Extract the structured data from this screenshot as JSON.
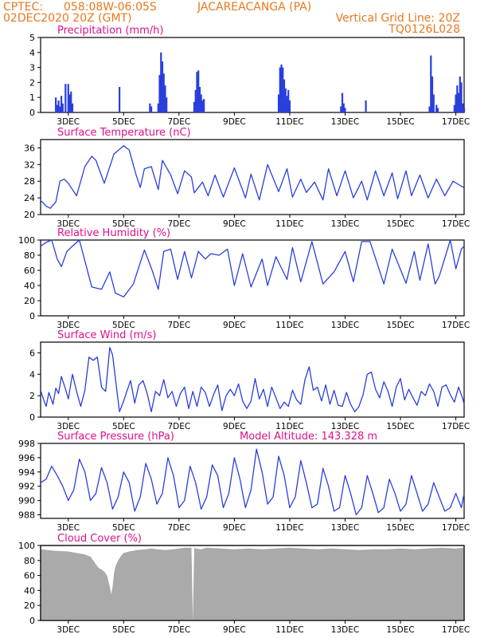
{
  "header": {
    "source": "CPTEC:",
    "coords": "058:08W-06:05S",
    "station": "JACAREACANGA (PA)",
    "run": "02DEC2020 20Z (GMT)",
    "grid_note": "Vertical Grid Line: 20Z",
    "model": "TQ0126L028"
  },
  "colors": {
    "header": "#e8781e",
    "title": "#e0108a",
    "series": "#2a3fdc",
    "cloud": "#aaaaaa"
  },
  "chart_data": [
    {
      "type": "bar",
      "title": "Precipitation (mm/h)",
      "x": [
        2.55,
        2.6,
        2.65,
        2.7,
        2.75,
        2.8,
        2.9,
        3.0,
        3.05,
        3.1,
        3.15,
        4.85,
        5.95,
        6.0,
        6.25,
        6.3,
        6.35,
        6.4,
        6.45,
        6.5,
        6.55,
        7.55,
        7.6,
        7.65,
        7.7,
        7.75,
        7.8,
        7.85,
        7.9,
        10.6,
        10.65,
        10.7,
        10.75,
        10.8,
        10.85,
        10.9,
        10.95,
        11.0,
        12.85,
        12.9,
        12.95,
        13.0,
        13.75,
        16.05,
        16.1,
        16.15,
        16.2,
        16.3,
        16.35,
        16.95,
        17.0,
        17.05,
        17.1,
        17.15,
        17.2,
        17.25,
        17.3
      ],
      "values": [
        1.0,
        0.5,
        0.8,
        0.4,
        1.1,
        0.6,
        1.9,
        1.9,
        1.2,
        1.4,
        0.6,
        1.7,
        0.6,
        0.4,
        0.6,
        2.5,
        4.0,
        3.4,
        2.6,
        1.8,
        1.0,
        0.7,
        1.5,
        2.7,
        2.8,
        1.7,
        1.2,
        0.8,
        0.9,
        1.2,
        3.0,
        3.2,
        3.0,
        2.2,
        1.6,
        1.1,
        1.5,
        0.8,
        0.4,
        1.3,
        0.6,
        0.3,
        0.8,
        0.4,
        3.8,
        2.4,
        1.2,
        0.5,
        0.3,
        0.5,
        1.2,
        1.8,
        1.3,
        2.4,
        2.0,
        0.6,
        0.3
      ],
      "x_ticks": [
        "3DEC",
        "5DEC",
        "7DEC",
        "9DEC",
        "11DEC",
        "13DEC",
        "15DEC",
        "17DEC"
      ],
      "y_ticks": [
        "0",
        "1",
        "2",
        "3",
        "4",
        "5"
      ],
      "ylim": [
        0,
        5
      ]
    },
    {
      "type": "line",
      "title": "Surface Temperature (nC)",
      "x": [
        2.0,
        2.1,
        2.2,
        2.35,
        2.55,
        2.7,
        2.85,
        3.0,
        3.3,
        3.6,
        3.85,
        4.0,
        4.3,
        4.65,
        5.0,
        5.2,
        5.45,
        5.6,
        5.75,
        6.0,
        6.25,
        6.4,
        6.7,
        6.95,
        7.2,
        7.45,
        7.55,
        7.85,
        8.05,
        8.3,
        8.6,
        9.0,
        9.4,
        9.6,
        9.9,
        10.2,
        10.6,
        10.9,
        11.1,
        11.4,
        11.6,
        11.9,
        12.2,
        12.4,
        12.7,
        13.0,
        13.3,
        13.6,
        13.8,
        14.1,
        14.4,
        14.7,
        14.9,
        15.2,
        15.4,
        15.7,
        16.0,
        16.3,
        16.6,
        16.9,
        17.2,
        17.3
      ],
      "values": [
        23.3,
        22.8,
        22.0,
        21.5,
        23.0,
        28.0,
        28.5,
        27.5,
        24.5,
        31.5,
        34.0,
        33.0,
        27.5,
        34.5,
        36.5,
        35.5,
        29.5,
        26.5,
        31.0,
        31.5,
        26.0,
        33.0,
        29.5,
        25.0,
        30.5,
        29.0,
        25.2,
        27.8,
        24.5,
        29.5,
        24.2,
        31.2,
        24.0,
        29.7,
        23.5,
        32.0,
        25.5,
        31.0,
        24.2,
        28.5,
        25.3,
        27.8,
        23.5,
        31.0,
        24.5,
        30.5,
        24.0,
        28.0,
        23.5,
        30.5,
        24.5,
        30.0,
        23.8,
        30.5,
        24.5,
        29.5,
        24.0,
        28.5,
        24.5,
        28.0,
        26.8,
        26.5
      ],
      "x_ticks": [
        "3DEC",
        "5DEC",
        "7DEC",
        "9DEC",
        "11DEC",
        "13DEC",
        "15DEC",
        "17DEC"
      ],
      "y_ticks": [
        "20",
        "24",
        "28",
        "32",
        "36"
      ],
      "ylim": [
        20,
        38
      ]
    },
    {
      "type": "line",
      "title": "Relative Humidity (%)",
      "x": [
        2.0,
        2.2,
        2.4,
        2.6,
        2.75,
        2.95,
        3.15,
        3.4,
        3.85,
        4.2,
        4.5,
        4.7,
        5.0,
        5.35,
        5.75,
        6.05,
        6.25,
        6.45,
        6.7,
        6.95,
        7.2,
        7.45,
        7.7,
        7.95,
        8.15,
        8.45,
        8.75,
        9.0,
        9.3,
        9.6,
        10.0,
        10.2,
        10.5,
        10.9,
        11.1,
        11.4,
        11.8,
        12.2,
        12.6,
        13.0,
        13.3,
        13.6,
        13.9,
        14.4,
        14.7,
        15.2,
        15.5,
        15.7,
        16.0,
        16.25,
        16.4,
        16.8,
        17.0,
        17.2,
        17.3
      ],
      "values": [
        92,
        97,
        100,
        75,
        65,
        85,
        92,
        100,
        38,
        35,
        58,
        30,
        25,
        42,
        87,
        58,
        35,
        85,
        88,
        48,
        85,
        50,
        85,
        75,
        82,
        80,
        88,
        40,
        82,
        38,
        75,
        40,
        78,
        48,
        90,
        45,
        98,
        42,
        58,
        85,
        45,
        98,
        98,
        42,
        88,
        43,
        85,
        47,
        95,
        42,
        52,
        100,
        62,
        88,
        92
      ],
      "x_ticks": [
        "3DEC",
        "5DEC",
        "7DEC",
        "9DEC",
        "11DEC",
        "13DEC",
        "15DEC",
        "17DEC"
      ],
      "y_ticks": [
        "0",
        "20",
        "40",
        "60",
        "80",
        "100"
      ],
      "ylim": [
        0,
        100
      ]
    },
    {
      "type": "line",
      "title": "Surface Wind (m/s)",
      "x": [
        2.0,
        2.1,
        2.2,
        2.3,
        2.45,
        2.55,
        2.65,
        2.75,
        2.9,
        3.0,
        3.15,
        3.3,
        3.45,
        3.6,
        3.75,
        3.9,
        4.05,
        4.2,
        4.35,
        4.5,
        4.6,
        4.75,
        4.85,
        5.0,
        5.1,
        5.25,
        5.4,
        5.55,
        5.7,
        5.85,
        6.0,
        6.15,
        6.3,
        6.45,
        6.6,
        6.75,
        6.9,
        7.05,
        7.2,
        7.35,
        7.5,
        7.65,
        7.8,
        7.95,
        8.1,
        8.25,
        8.4,
        8.55,
        8.7,
        8.85,
        9.0,
        9.15,
        9.3,
        9.45,
        9.6,
        9.75,
        9.9,
        10.05,
        10.2,
        10.35,
        10.5,
        10.65,
        10.8,
        10.95,
        11.1,
        11.25,
        11.4,
        11.55,
        11.7,
        11.85,
        12.0,
        12.15,
        12.3,
        12.45,
        12.6,
        12.75,
        12.9,
        13.05,
        13.2,
        13.35,
        13.5,
        13.65,
        13.8,
        13.95,
        14.1,
        14.25,
        14.4,
        14.55,
        14.7,
        14.85,
        15.0,
        15.15,
        15.3,
        15.45,
        15.6,
        15.75,
        15.9,
        16.05,
        16.2,
        16.35,
        16.5,
        16.65,
        16.8,
        16.95,
        17.1,
        17.25,
        17.3
      ],
      "values": [
        2.5,
        1.7,
        1.0,
        2.3,
        1.2,
        2.7,
        2.2,
        3.8,
        2.6,
        1.7,
        4.0,
        2.4,
        1.0,
        2.5,
        5.6,
        5.3,
        5.6,
        2.8,
        2.4,
        6.5,
        5.8,
        2.6,
        0.5,
        1.5,
        2.3,
        3.4,
        1.3,
        3.0,
        3.4,
        2.2,
        0.5,
        2.4,
        2.0,
        3.5,
        1.8,
        2.4,
        1.0,
        2.2,
        2.8,
        0.8,
        2.4,
        1.0,
        2.8,
        2.3,
        1.0,
        2.1,
        3.0,
        0.6,
        2.0,
        2.6,
        2.0,
        3.1,
        1.5,
        0.8,
        1.5,
        3.6,
        1.7,
        2.6,
        1.0,
        2.8,
        1.8,
        0.8,
        1.4,
        1.0,
        2.5,
        1.6,
        1.2,
        3.5,
        4.7,
        2.5,
        2.8,
        1.5,
        3.0,
        1.2,
        2.5,
        1.1,
        1.0,
        2.3,
        1.2,
        0.5,
        1.0,
        2.1,
        4.0,
        4.2,
        2.6,
        1.8,
        3.3,
        2.4,
        1.0,
        2.8,
        3.6,
        1.6,
        2.6,
        1.8,
        1.1,
        2.4,
        2.0,
        3.1,
        2.4,
        1.0,
        2.8,
        3.0,
        2.1,
        1.4,
        2.8,
        1.7,
        1.2
      ],
      "x_ticks": [
        "3DEC",
        "5DEC",
        "7DEC",
        "9DEC",
        "11DEC",
        "13DEC",
        "15DEC",
        "17DEC"
      ],
      "y_ticks": [
        "0",
        "2",
        "4",
        "6"
      ],
      "ylim": [
        0,
        7
      ]
    },
    {
      "type": "line",
      "title": "Surface Pressure (hPa)",
      "annotation": "Model Altitude: 143.328 m",
      "x": [
        2.0,
        2.2,
        2.4,
        2.6,
        2.8,
        3.0,
        3.2,
        3.4,
        3.6,
        3.8,
        4.0,
        4.2,
        4.4,
        4.6,
        4.8,
        5.0,
        5.2,
        5.4,
        5.6,
        5.8,
        6.0,
        6.2,
        6.4,
        6.6,
        6.8,
        7.0,
        7.2,
        7.4,
        7.6,
        7.8,
        8.0,
        8.2,
        8.4,
        8.6,
        8.8,
        9.0,
        9.2,
        9.4,
        9.6,
        9.8,
        10.0,
        10.2,
        10.4,
        10.6,
        10.8,
        11.0,
        11.2,
        11.4,
        11.6,
        11.8,
        12.0,
        12.2,
        12.4,
        12.6,
        12.8,
        13.0,
        13.2,
        13.4,
        13.6,
        13.8,
        14.0,
        14.2,
        14.4,
        14.6,
        14.8,
        15.0,
        15.2,
        15.4,
        15.6,
        15.8,
        16.0,
        16.2,
        16.4,
        16.6,
        16.8,
        17.0,
        17.2,
        17.3
      ],
      "values": [
        992.5,
        993.0,
        994.8,
        993.5,
        992.0,
        990.0,
        991.5,
        995.8,
        994.0,
        990.0,
        991.0,
        994.6,
        992.5,
        988.8,
        990.5,
        994.0,
        992.5,
        988.5,
        990.5,
        995.2,
        993.0,
        989.5,
        991.0,
        996.0,
        993.5,
        989.0,
        990.0,
        994.8,
        992.5,
        988.8,
        990.5,
        995.0,
        993.5,
        989.0,
        991.0,
        996.0,
        993.0,
        989.0,
        991.5,
        997.2,
        994.0,
        989.5,
        990.5,
        996.2,
        993.5,
        989.0,
        990.5,
        995.6,
        992.5,
        989.0,
        989.5,
        994.5,
        992.0,
        988.5,
        989.0,
        993.5,
        991.0,
        988.0,
        989.0,
        993.5,
        991.0,
        988.3,
        989.0,
        993.0,
        991.0,
        988.5,
        989.5,
        993.5,
        991.0,
        988.5,
        989.5,
        992.5,
        990.5,
        988.5,
        989.0,
        991.0,
        989.0,
        991.0
      ],
      "x_ticks": [
        "3DEC",
        "5DEC",
        "7DEC",
        "9DEC",
        "11DEC",
        "13DEC",
        "15DEC",
        "17DEC"
      ],
      "y_ticks": [
        "988",
        "990",
        "992",
        "994",
        "996",
        "998"
      ],
      "ylim": [
        987.5,
        998
      ]
    },
    {
      "type": "area",
      "title": "Cloud Cover (%)",
      "x": [
        2.0,
        2.5,
        3.0,
        3.3,
        3.6,
        3.8,
        3.9,
        4.0,
        4.1,
        4.2,
        4.3,
        4.4,
        4.5,
        4.55,
        4.6,
        4.65,
        4.7,
        4.8,
        4.9,
        5.0,
        5.2,
        5.5,
        5.8,
        6.0,
        6.2,
        6.5,
        6.8,
        7.0,
        7.2,
        7.45,
        7.5,
        7.55,
        7.6,
        7.8,
        8.0,
        8.5,
        9.0,
        9.5,
        10.0,
        10.5,
        11.0,
        11.5,
        12.0,
        12.5,
        13.0,
        13.5,
        14.0,
        14.5,
        15.0,
        15.5,
        16.0,
        16.5,
        17.0,
        17.3
      ],
      "values": [
        95,
        93,
        92,
        90,
        88,
        85,
        80,
        75,
        70,
        68,
        65,
        60,
        45,
        35,
        45,
        62,
        72,
        80,
        86,
        90,
        92,
        94,
        95,
        96,
        95,
        94,
        95,
        96,
        97,
        97,
        0,
        97,
        96,
        95,
        97,
        96,
        95,
        96,
        95,
        96,
        97,
        96,
        95,
        96,
        95,
        94,
        95,
        95,
        96,
        95,
        96,
        97,
        96,
        97
      ],
      "x_ticks": [
        "3DEC",
        "5DEC",
        "7DEC",
        "9DEC",
        "11DEC",
        "13DEC",
        "15DEC",
        "17DEC"
      ],
      "y_ticks": [
        "0",
        "20",
        "40",
        "60",
        "80",
        "100"
      ],
      "ylim": [
        0,
        100
      ]
    }
  ]
}
